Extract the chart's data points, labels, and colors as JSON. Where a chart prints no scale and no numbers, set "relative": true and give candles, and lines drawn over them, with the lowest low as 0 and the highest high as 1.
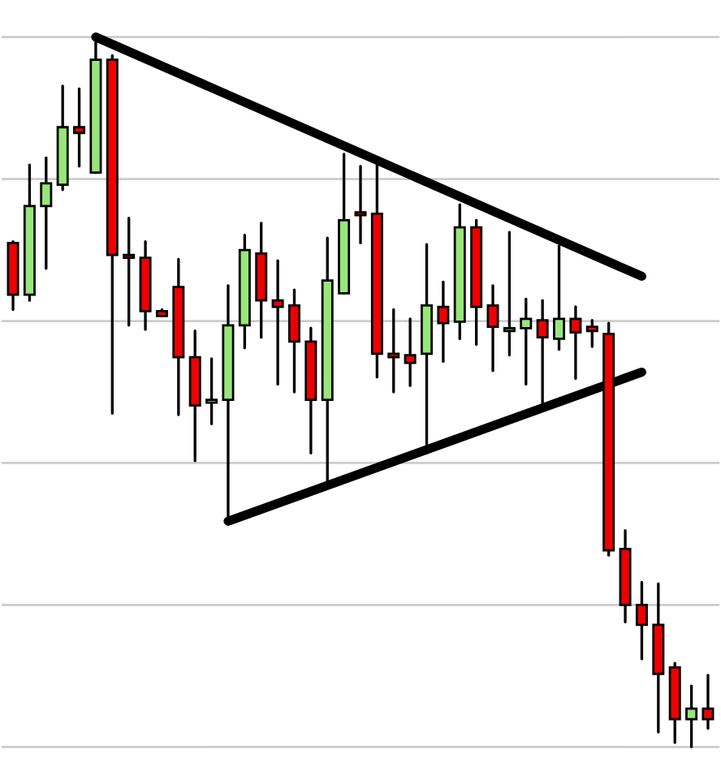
{
  "chart_data": {
    "type": "candlestick",
    "relative": true,
    "grid": "y",
    "categories": [
      null,
      null,
      null,
      null,
      null,
      null,
      null,
      null,
      null,
      null,
      null,
      null,
      null,
      null,
      null,
      null,
      null,
      null,
      null,
      null,
      null,
      null,
      null,
      null,
      null,
      null,
      null,
      null,
      null,
      null,
      null,
      null,
      null,
      null,
      null,
      null,
      null,
      null,
      null,
      null,
      null,
      null,
      null
    ],
    "ohlc": [
      [
        0.71,
        0.712,
        0.616,
        0.637
      ],
      [
        0.637,
        0.82,
        0.629,
        0.762
      ],
      [
        0.762,
        0.83,
        0.674,
        0.794
      ],
      [
        0.792,
        0.931,
        0.785,
        0.873
      ],
      [
        0.873,
        0.927,
        0.818,
        0.865
      ],
      [
        0.809,
        1.0,
        0.809,
        0.968
      ],
      [
        0.968,
        0.974,
        0.47,
        0.693
      ],
      [
        0.693,
        0.745,
        0.594,
        0.689
      ],
      [
        0.689,
        0.712,
        0.588,
        0.614
      ],
      [
        0.614,
        0.616,
        0.607,
        0.607
      ],
      [
        0.648,
        0.687,
        0.468,
        0.549
      ],
      [
        0.549,
        0.586,
        0.403,
        0.481
      ],
      [
        0.485,
        0.547,
        0.455,
        0.489
      ],
      [
        0.489,
        0.65,
        0.318,
        0.594
      ],
      [
        0.594,
        0.721,
        0.562,
        0.7
      ],
      [
        0.695,
        0.738,
        0.577,
        0.629
      ],
      [
        0.629,
        0.685,
        0.511,
        0.62
      ],
      [
        0.622,
        0.644,
        0.5,
        0.571
      ],
      [
        0.571,
        0.59,
        0.414,
        0.489
      ],
      [
        0.489,
        0.717,
        0.373,
        0.657
      ],
      [
        0.639,
        0.835,
        0.639,
        0.742
      ],
      [
        0.753,
        0.818,
        0.71,
        0.749
      ],
      [
        0.751,
        0.82,
        0.521,
        0.554
      ],
      [
        0.554,
        0.616,
        0.5,
        0.549
      ],
      [
        0.552,
        0.603,
        0.509,
        0.541
      ],
      [
        0.554,
        0.708,
        0.423,
        0.622
      ],
      [
        0.62,
        0.655,
        0.543,
        0.597
      ],
      [
        0.599,
        0.764,
        0.575,
        0.732
      ],
      [
        0.732,
        0.742,
        0.567,
        0.62
      ],
      [
        0.622,
        0.65,
        0.53,
        0.592
      ],
      [
        0.586,
        0.725,
        0.552,
        0.59
      ],
      [
        0.59,
        0.631,
        0.511,
        0.603
      ],
      [
        0.601,
        0.629,
        0.481,
        0.577
      ],
      [
        0.575,
        0.706,
        0.56,
        0.603
      ],
      [
        0.603,
        0.62,
        0.519,
        0.584
      ],
      [
        0.592,
        0.601,
        0.564,
        0.586
      ],
      [
        0.582,
        0.597,
        0.27,
        0.277
      ],
      [
        0.279,
        0.305,
        0.176,
        0.2
      ],
      [
        0.2,
        0.232,
        0.124,
        0.172
      ],
      [
        0.172,
        0.23,
        0.021,
        0.103
      ],
      [
        0.112,
        0.118,
        0.006,
        0.039
      ],
      [
        0.039,
        0.086,
        0.0,
        0.054
      ],
      [
        0.054,
        0.101,
        0.026,
        0.039
      ]
    ],
    "colors": [
      "#ee0000",
      "#98e67a",
      "#98e67a",
      "#98e67a",
      "#ee0000",
      "#98e67a",
      "#ee0000",
      "#ee0000",
      "#ee0000",
      "#ee0000",
      "#ee0000",
      "#ee0000",
      "#98e67a",
      "#98e67a",
      "#98e67a",
      "#ee0000",
      "#ee0000",
      "#ee0000",
      "#ee0000",
      "#98e67a",
      "#98e67a",
      "#ee0000",
      "#ee0000",
      "#ee0000",
      "#ee0000",
      "#98e67a",
      "#ee0000",
      "#98e67a",
      "#ee0000",
      "#ee0000",
      "#98e67a",
      "#98e67a",
      "#ee0000",
      "#98e67a",
      "#ee0000",
      "#ee0000",
      "#ee0000",
      "#ee0000",
      "#ee0000",
      "#ee0000",
      "#ee0000",
      "#98e67a",
      "#ee0000"
    ],
    "series": [
      {
        "type": "line",
        "color": "#000000",
        "values": [
          null,
          null,
          null,
          null,
          null,
          1.0,
          null,
          null,
          null,
          null,
          null,
          null,
          null,
          null,
          null,
          null,
          null,
          null,
          null,
          null,
          null,
          null,
          null,
          null,
          null,
          null,
          null,
          null,
          null,
          null,
          null,
          null,
          null,
          null,
          null,
          null,
          null,
          null,
          0.663,
          null,
          null,
          null,
          null
        ]
      },
      {
        "type": "line",
        "color": "#000000",
        "values": [
          null,
          null,
          null,
          null,
          null,
          null,
          null,
          null,
          null,
          null,
          null,
          null,
          null,
          0.318,
          null,
          null,
          null,
          null,
          null,
          null,
          null,
          null,
          null,
          null,
          null,
          null,
          null,
          null,
          null,
          null,
          null,
          null,
          null,
          null,
          null,
          null,
          null,
          null,
          0.528,
          null,
          null,
          null,
          null
        ]
      }
    ]
  }
}
